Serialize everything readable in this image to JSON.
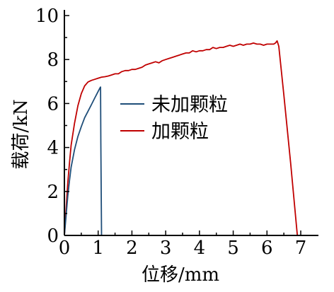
{
  "chart_data": {
    "type": "line",
    "title": "",
    "xlabel": "位移/mm",
    "ylabel": "载荷/kN",
    "xlim": [
      0,
      7
    ],
    "ylim": [
      0,
      10
    ],
    "x_ticks": [
      "0",
      "1",
      "2",
      "3",
      "4",
      "5",
      "6",
      "7"
    ],
    "y_ticks": [
      "0",
      "2",
      "4",
      "6",
      "8",
      "10"
    ],
    "grid": false,
    "legend_position": "center",
    "series": [
      {
        "name": "未加颗粒",
        "color": "#1f4e79",
        "points": [
          [
            0,
            0
          ],
          [
            0.05,
            0.9
          ],
          [
            0.1,
            1.8
          ],
          [
            0.15,
            2.5
          ],
          [
            0.2,
            3.1
          ],
          [
            0.3,
            3.9
          ],
          [
            0.4,
            4.5
          ],
          [
            0.5,
            4.95
          ],
          [
            0.6,
            5.35
          ],
          [
            0.7,
            5.65
          ],
          [
            0.8,
            5.95
          ],
          [
            0.9,
            6.25
          ],
          [
            1.0,
            6.55
          ],
          [
            1.05,
            6.7
          ],
          [
            1.07,
            6.75
          ],
          [
            1.08,
            4.2
          ],
          [
            1.1,
            0
          ]
        ]
      },
      {
        "name": "加颗粒",
        "color": "#c00000",
        "points": [
          [
            0,
            0
          ],
          [
            0.05,
            1.2
          ],
          [
            0.1,
            2.4
          ],
          [
            0.15,
            3.3
          ],
          [
            0.2,
            4.1
          ],
          [
            0.3,
            5.1
          ],
          [
            0.4,
            5.9
          ],
          [
            0.5,
            6.45
          ],
          [
            0.6,
            6.8
          ],
          [
            0.7,
            6.98
          ],
          [
            0.8,
            7.05
          ],
          [
            0.9,
            7.1
          ],
          [
            1.0,
            7.15
          ],
          [
            1.1,
            7.2
          ],
          [
            1.2,
            7.22
          ],
          [
            1.3,
            7.25
          ],
          [
            1.4,
            7.3
          ],
          [
            1.5,
            7.35
          ],
          [
            1.6,
            7.35
          ],
          [
            1.7,
            7.45
          ],
          [
            1.8,
            7.5
          ],
          [
            1.9,
            7.5
          ],
          [
            2.0,
            7.55
          ],
          [
            2.1,
            7.55
          ],
          [
            2.2,
            7.6
          ],
          [
            2.3,
            7.65
          ],
          [
            2.4,
            7.75
          ],
          [
            2.5,
            7.8
          ],
          [
            2.6,
            7.85
          ],
          [
            2.7,
            7.9
          ],
          [
            2.8,
            7.85
          ],
          [
            2.9,
            7.95
          ],
          [
            3.0,
            8.0
          ],
          [
            3.1,
            8.05
          ],
          [
            3.2,
            8.1
          ],
          [
            3.3,
            8.15
          ],
          [
            3.4,
            8.2
          ],
          [
            3.5,
            8.25
          ],
          [
            3.6,
            8.3
          ],
          [
            3.7,
            8.3
          ],
          [
            3.8,
            8.4
          ],
          [
            3.9,
            8.35
          ],
          [
            4.0,
            8.4
          ],
          [
            4.1,
            8.4
          ],
          [
            4.2,
            8.45
          ],
          [
            4.3,
            8.45
          ],
          [
            4.4,
            8.55
          ],
          [
            4.5,
            8.5
          ],
          [
            4.6,
            8.55
          ],
          [
            4.7,
            8.55
          ],
          [
            4.8,
            8.6
          ],
          [
            4.9,
            8.65
          ],
          [
            5.0,
            8.6
          ],
          [
            5.1,
            8.65
          ],
          [
            5.2,
            8.7
          ],
          [
            5.3,
            8.65
          ],
          [
            5.4,
            8.7
          ],
          [
            5.5,
            8.7
          ],
          [
            5.6,
            8.75
          ],
          [
            5.7,
            8.7
          ],
          [
            5.8,
            8.7
          ],
          [
            5.9,
            8.65
          ],
          [
            6.0,
            8.7
          ],
          [
            6.1,
            8.7
          ],
          [
            6.2,
            8.7
          ],
          [
            6.25,
            8.75
          ],
          [
            6.3,
            8.85
          ],
          [
            6.35,
            8.6
          ],
          [
            6.5,
            6.4
          ],
          [
            6.7,
            3.3
          ],
          [
            6.9,
            0
          ]
        ]
      }
    ]
  }
}
